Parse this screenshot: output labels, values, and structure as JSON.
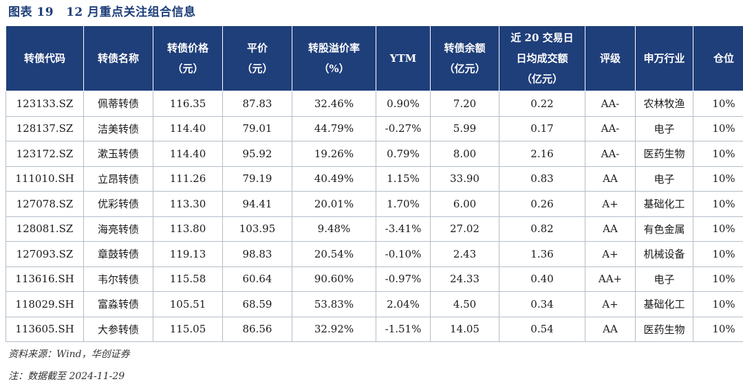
{
  "title": {
    "label": "图表 19",
    "text": "12 月重点关注组合信息"
  },
  "table": {
    "headers": [
      [
        "转债代码"
      ],
      [
        "转债名称"
      ],
      [
        "转债价格",
        "（元）"
      ],
      [
        "平价",
        "（元）"
      ],
      [
        "转股溢价率",
        "（%）"
      ],
      [
        "YTM"
      ],
      [
        "转债余额",
        "（亿元）"
      ],
      [
        "近 20 交易日",
        "日均成交额",
        "（亿元）"
      ],
      [
        "评级"
      ],
      [
        "申万行业"
      ],
      [
        "仓位"
      ]
    ],
    "rows": [
      [
        "123133.SZ",
        "佩蒂转债",
        "116.35",
        "87.83",
        "32.46%",
        "0.90%",
        "7.20",
        "0.22",
        "AA-",
        "农林牧渔",
        "10%"
      ],
      [
        "128137.SZ",
        "洁美转债",
        "114.40",
        "79.01",
        "44.79%",
        "-0.27%",
        "5.99",
        "0.17",
        "AA-",
        "电子",
        "10%"
      ],
      [
        "123172.SZ",
        "漱玉转债",
        "114.40",
        "95.92",
        "19.26%",
        "0.79%",
        "8.00",
        "2.16",
        "AA-",
        "医药生物",
        "10%"
      ],
      [
        "111010.SH",
        "立昂转债",
        "111.26",
        "79.19",
        "40.49%",
        "1.15%",
        "33.90",
        "0.83",
        "AA",
        "电子",
        "10%"
      ],
      [
        "127078.SZ",
        "优彩转债",
        "113.30",
        "94.41",
        "20.01%",
        "1.70%",
        "6.00",
        "0.26",
        "A+",
        "基础化工",
        "10%"
      ],
      [
        "128081.SZ",
        "海亮转债",
        "113.80",
        "103.95",
        "9.48%",
        "-3.41%",
        "27.02",
        "0.82",
        "AA",
        "有色金属",
        "10%"
      ],
      [
        "127093.SZ",
        "章鼓转债",
        "119.13",
        "98.83",
        "20.54%",
        "-0.10%",
        "2.43",
        "1.36",
        "A+",
        "机械设备",
        "10%"
      ],
      [
        "113616.SH",
        "韦尔转债",
        "115.58",
        "60.64",
        "90.60%",
        "-0.97%",
        "24.33",
        "0.40",
        "AA+",
        "电子",
        "10%"
      ],
      [
        "118029.SH",
        "富淼转债",
        "105.51",
        "68.59",
        "53.83%",
        "2.04%",
        "4.50",
        "0.34",
        "A+",
        "基础化工",
        "10%"
      ],
      [
        "113605.SH",
        "大参转债",
        "115.05",
        "86.56",
        "32.92%",
        "-1.51%",
        "14.05",
        "0.54",
        "AA",
        "医药生物",
        "10%"
      ]
    ]
  },
  "source": "资料来源：Wind，华创证券",
  "note": "注：数据截至 2024-11-29",
  "colors": {
    "header_bg": "#1f3f7a",
    "header_text": "#ffffff",
    "title": "#1f3f7a",
    "grid": "#b5bcc8"
  }
}
